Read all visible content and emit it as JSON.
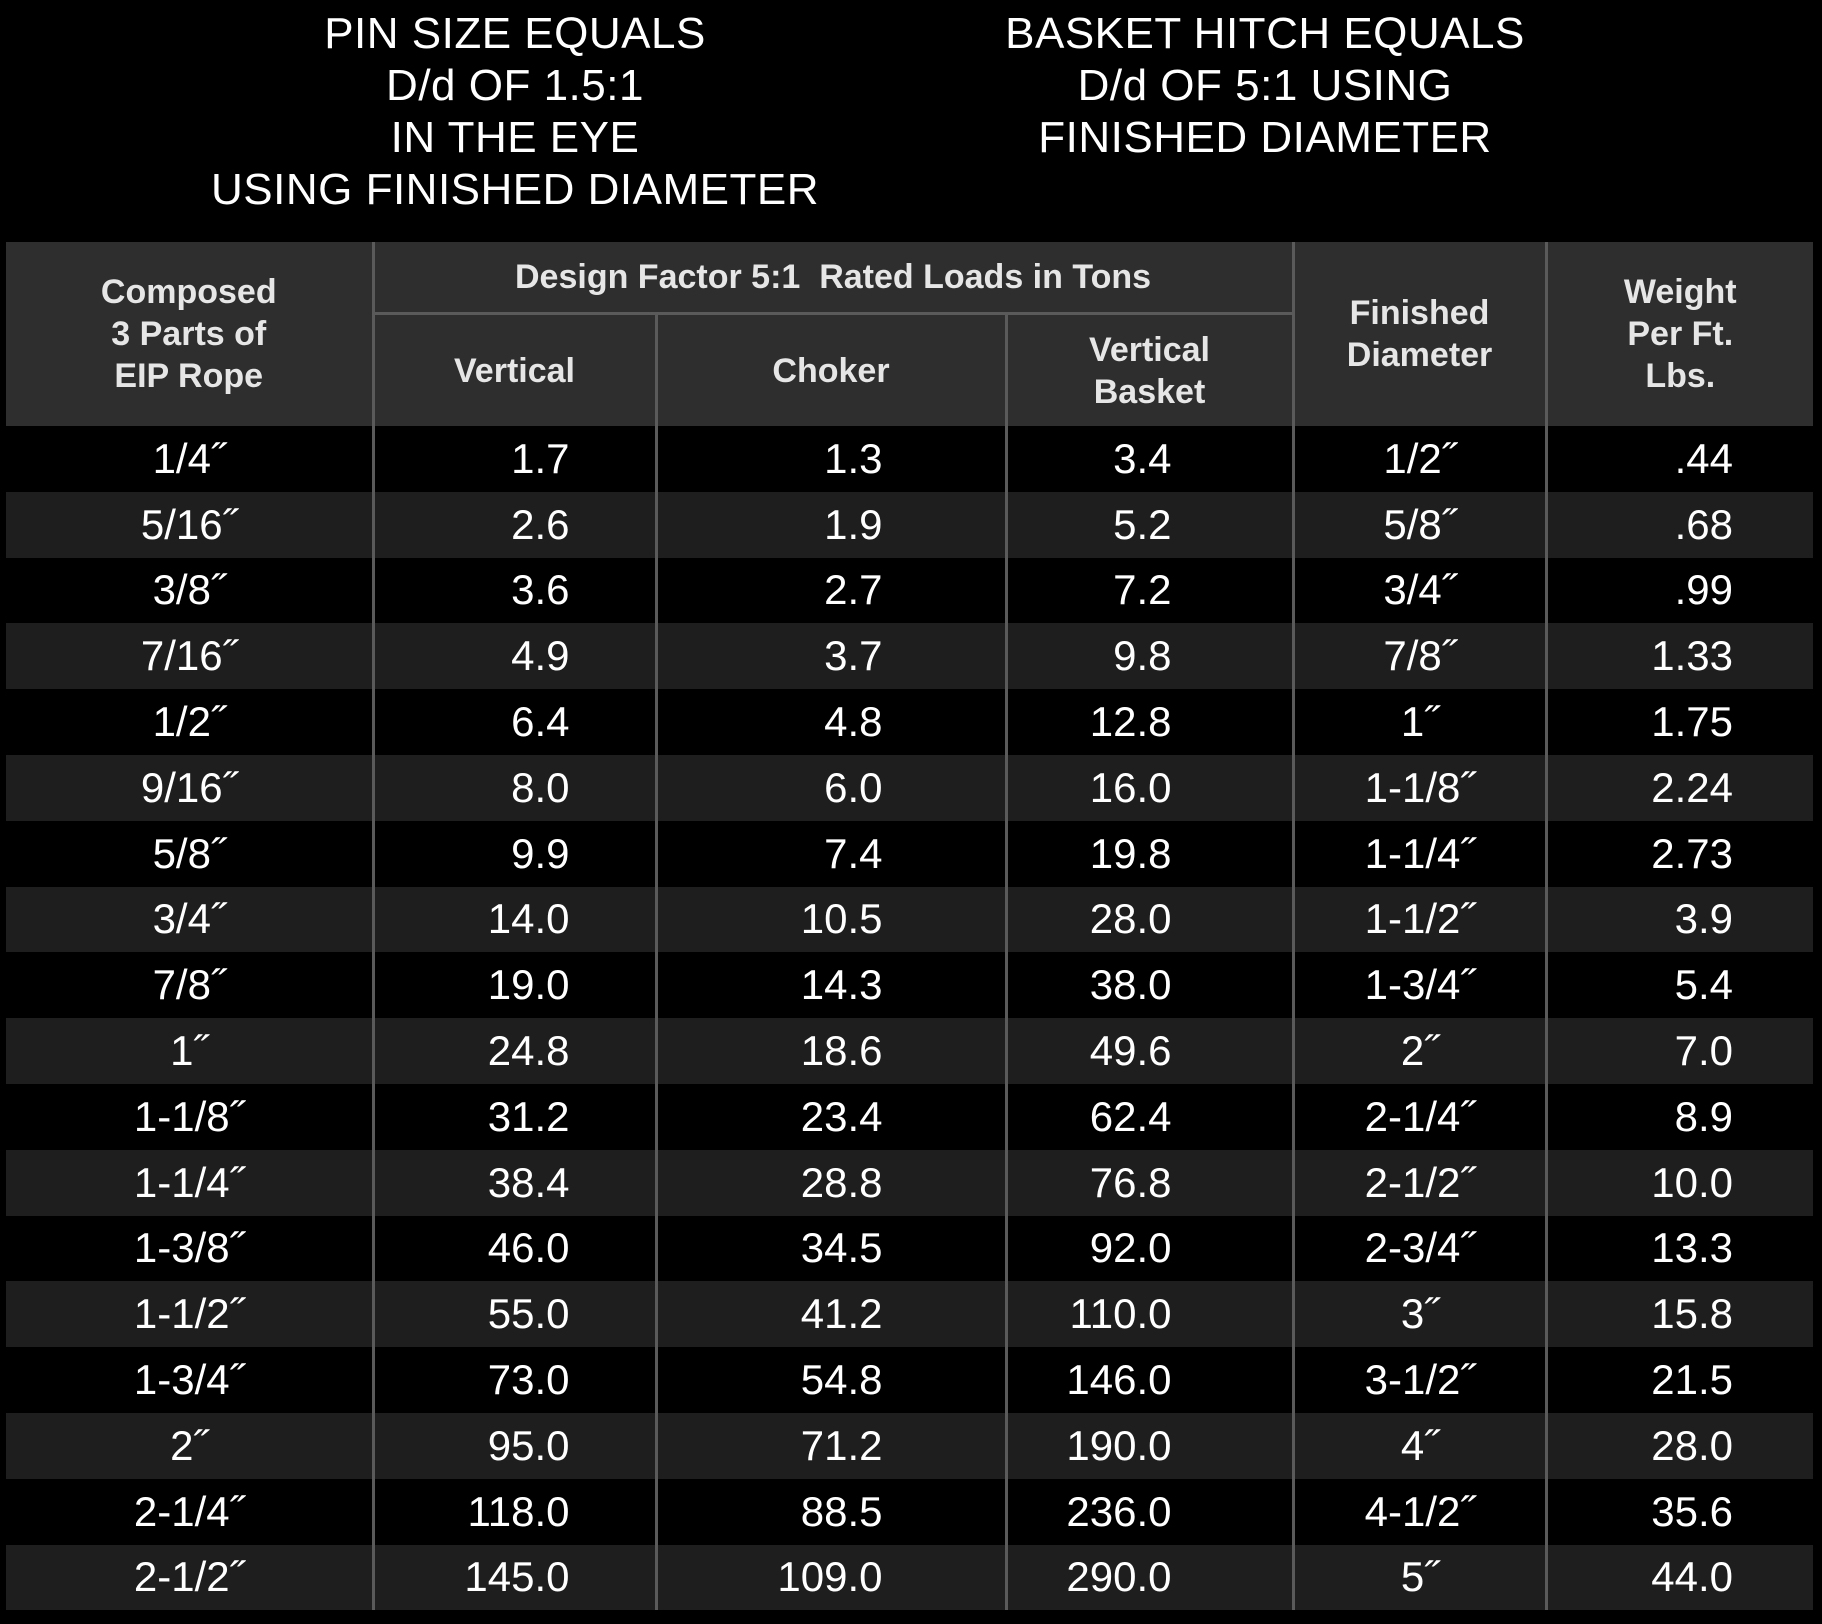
{
  "notes": {
    "left": [
      "PIN SIZE EQUALS",
      "D/d OF 1.5:1",
      "IN THE EYE",
      "USING FINISHED DIAMETER"
    ],
    "right": [
      "BASKET HITCH EQUALS",
      "D/d OF 5:1 USING",
      "FINISHED DIAMETER"
    ]
  },
  "table": {
    "headers": {
      "composed": [
        "Composed",
        "3 Parts of",
        "EIP Rope"
      ],
      "group": "Design Factor 5:1  Rated Loads in Tons",
      "vertical": "Vertical",
      "choker": "Choker",
      "vertical_basket": [
        "Vertical",
        "Basket"
      ],
      "finished": [
        "Finished",
        "Diameter"
      ],
      "weight": [
        "Weight",
        "Per Ft.",
        "Lbs."
      ]
    },
    "rows": [
      {
        "size": "1/4˝",
        "vertical": "1.7",
        "choker": "1.3",
        "basket": "3.4",
        "finished": "1/2˝",
        "weight": ".44"
      },
      {
        "size": "5/16˝",
        "vertical": "2.6",
        "choker": "1.9",
        "basket": "5.2",
        "finished": "5/8˝",
        "weight": ".68"
      },
      {
        "size": "3/8˝",
        "vertical": "3.6",
        "choker": "2.7",
        "basket": "7.2",
        "finished": "3/4˝",
        "weight": ".99"
      },
      {
        "size": "7/16˝",
        "vertical": "4.9",
        "choker": "3.7",
        "basket": "9.8",
        "finished": "7/8˝",
        "weight": "1.33"
      },
      {
        "size": "1/2˝",
        "vertical": "6.4",
        "choker": "4.8",
        "basket": "12.8",
        "finished": "1˝",
        "weight": "1.75"
      },
      {
        "size": "9/16˝",
        "vertical": "8.0",
        "choker": "6.0",
        "basket": "16.0",
        "finished": "1-1/8˝",
        "weight": "2.24"
      },
      {
        "size": "5/8˝",
        "vertical": "9.9",
        "choker": "7.4",
        "basket": "19.8",
        "finished": "1-1/4˝",
        "weight": "2.73"
      },
      {
        "size": "3/4˝",
        "vertical": "14.0",
        "choker": "10.5",
        "basket": "28.0",
        "finished": "1-1/2˝",
        "weight": "3.9"
      },
      {
        "size": "7/8˝",
        "vertical": "19.0",
        "choker": "14.3",
        "basket": "38.0",
        "finished": "1-3/4˝",
        "weight": "5.4"
      },
      {
        "size": "1˝",
        "vertical": "24.8",
        "choker": "18.6",
        "basket": "49.6",
        "finished": "2˝",
        "weight": "7.0"
      },
      {
        "size": "1-1/8˝",
        "vertical": "31.2",
        "choker": "23.4",
        "basket": "62.4",
        "finished": "2-1/4˝",
        "weight": "8.9"
      },
      {
        "size": "1-1/4˝",
        "vertical": "38.4",
        "choker": "28.8",
        "basket": "76.8",
        "finished": "2-1/2˝",
        "weight": "10.0"
      },
      {
        "size": "1-3/8˝",
        "vertical": "46.0",
        "choker": "34.5",
        "basket": "92.0",
        "finished": "2-3/4˝",
        "weight": "13.3"
      },
      {
        "size": "1-1/2˝",
        "vertical": "55.0",
        "choker": "41.2",
        "basket": "110.0",
        "finished": "3˝",
        "weight": "15.8"
      },
      {
        "size": "1-3/4˝",
        "vertical": "73.0",
        "choker": "54.8",
        "basket": "146.0",
        "finished": "3-1/2˝",
        "weight": "21.5"
      },
      {
        "size": "2˝",
        "vertical": "95.0",
        "choker": "71.2",
        "basket": "190.0",
        "finished": "4˝",
        "weight": "28.0"
      },
      {
        "size": "2-1/4˝",
        "vertical": "118.0",
        "choker": "88.5",
        "basket": "236.0",
        "finished": "4-1/2˝",
        "weight": "35.6"
      },
      {
        "size": "2-1/2˝",
        "vertical": "145.0",
        "choker": "109.0",
        "basket": "290.0",
        "finished": "5˝",
        "weight": "44.0"
      }
    ]
  }
}
